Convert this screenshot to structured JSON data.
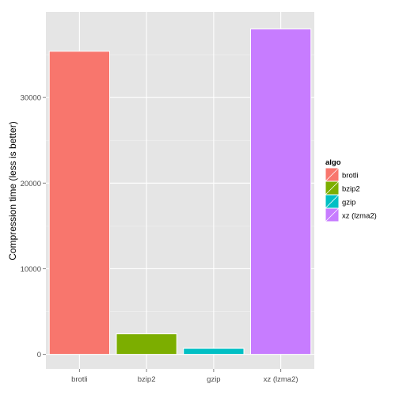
{
  "chart_data": {
    "type": "bar",
    "categories": [
      "brotli",
      "bzip2",
      "gzip",
      "xz (lzma2)"
    ],
    "values": [
      35400,
      2400,
      700,
      38000
    ],
    "colors": [
      "#f8766d",
      "#7cae00",
      "#00bfc4",
      "#c77cff"
    ],
    "xlabel": "",
    "ylabel": "Compression time (less is better)",
    "ylim": [
      -1700,
      40000
    ],
    "yticks": [
      0,
      10000,
      20000,
      30000
    ],
    "ytick_labels": [
      "0",
      "10000",
      "20000",
      "30000"
    ],
    "grid": true,
    "panel_background": "#e5e5e5",
    "legend": {
      "title": "algo",
      "placement": "right",
      "entries": [
        "brotli",
        "bzip2",
        "gzip",
        "xz (lzma2)"
      ]
    }
  }
}
